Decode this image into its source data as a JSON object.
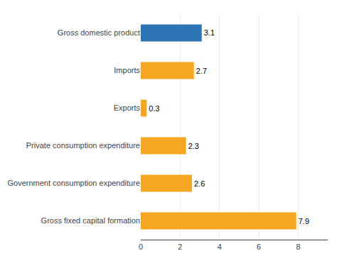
{
  "chart_data": {
    "type": "bar",
    "orientation": "horizontal",
    "categories": [
      "Gross fixed capital formation",
      "Government consumption expenditure",
      "Private consumption expenditure",
      "Exports",
      "Imports",
      "Gross domestic product"
    ],
    "values": [
      7.9,
      2.6,
      2.3,
      0.3,
      2.7,
      3.1
    ],
    "colors": [
      "#f5a623",
      "#f5a623",
      "#f5a623",
      "#f5a623",
      "#f5a623",
      "#2e75b6"
    ],
    "xlim": [
      0,
      9.5
    ],
    "xticks": [
      0,
      2,
      4,
      6,
      8
    ],
    "data_labels": true,
    "grid": true
  }
}
